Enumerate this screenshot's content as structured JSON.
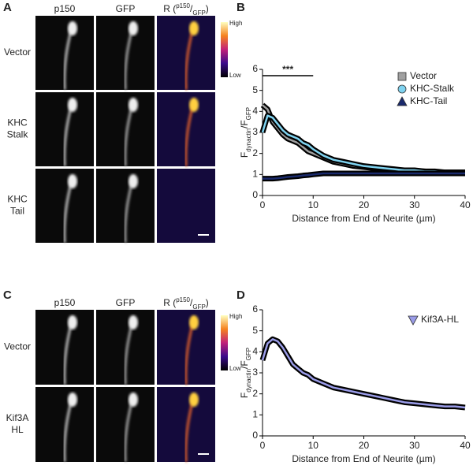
{
  "figure": {
    "panels": [
      "A",
      "B",
      "C",
      "D"
    ],
    "top": {
      "columns": [
        [
          {
            "text": "p150"
          }
        ],
        [
          {
            "text": "GFP"
          }
        ],
        [
          {
            "text": "R ("
          },
          {
            "text": "p150",
            "sup": true
          },
          {
            "text": "/"
          },
          {
            "text": "GFP",
            "sub": true
          },
          {
            "text": ")"
          }
        ]
      ],
      "rows": [
        [
          "Vector"
        ],
        [
          "KHC",
          "Stalk"
        ],
        [
          "KHC",
          "Tail"
        ]
      ],
      "colorbar": {
        "high": "High",
        "low": "Low"
      }
    },
    "bottom": {
      "columns": [
        [
          {
            "text": "p150"
          }
        ],
        [
          {
            "text": "GFP"
          }
        ],
        [
          {
            "text": "R ("
          },
          {
            "text": "p150",
            "sup": true
          },
          {
            "text": "/"
          },
          {
            "text": "GFP",
            "sub": true
          },
          {
            "text": ")"
          }
        ]
      ],
      "rows": [
        [
          "Vector"
        ],
        [
          "Kif3A",
          "HL"
        ]
      ],
      "colorbar": {
        "high": "High",
        "low": "Low"
      }
    }
  },
  "chart_data": [
    {
      "type": "line",
      "ylabel": [
        {
          "text": "F"
        },
        {
          "text": "dynactin",
          "sub": true
        },
        {
          "text": "/F"
        },
        {
          "text": "GFP",
          "sub": true
        }
      ],
      "xlabel": "Distance from End of Neurite (µm)",
      "x": [
        0,
        1,
        2,
        3,
        4,
        5,
        6,
        7,
        8,
        9,
        10,
        12,
        14,
        16,
        18,
        20,
        22,
        24,
        26,
        28,
        30,
        32,
        34,
        36,
        38,
        40
      ],
      "series": [
        {
          "name": "Vector",
          "color": "#a0a0a0",
          "marker": "square",
          "values": [
            4.3,
            4.1,
            3.5,
            3.2,
            2.9,
            2.7,
            2.6,
            2.5,
            2.3,
            2.1,
            2.0,
            1.8,
            1.6,
            1.5,
            1.4,
            1.35,
            1.3,
            1.25,
            1.2,
            1.2,
            1.15,
            1.15,
            1.1,
            1.1,
            1.1,
            1.1
          ]
        },
        {
          "name": "KHC-Stalk",
          "color": "#7fd3f0",
          "marker": "circle",
          "values": [
            3.0,
            3.8,
            3.7,
            3.4,
            3.1,
            2.9,
            2.8,
            2.7,
            2.5,
            2.4,
            2.2,
            1.9,
            1.7,
            1.6,
            1.5,
            1.4,
            1.35,
            1.3,
            1.25,
            1.2,
            1.2,
            1.15,
            1.15,
            1.1,
            1.1,
            1.1
          ]
        },
        {
          "name": "KHC-Tail",
          "color": "#1a2a6c",
          "marker": "triangle",
          "values": [
            0.8,
            0.8,
            0.8,
            0.82,
            0.85,
            0.88,
            0.9,
            0.92,
            0.95,
            0.97,
            1.0,
            1.05,
            1.05,
            1.05,
            1.05,
            1.05,
            1.05,
            1.05,
            1.05,
            1.05,
            1.05,
            1.05,
            1.05,
            1.05,
            1.05,
            1.05
          ]
        }
      ],
      "annotations": [
        {
          "text": "***",
          "x": [
            0,
            10
          ],
          "y": 5.7
        }
      ],
      "xlim": [
        0,
        40
      ],
      "xticks": [
        0,
        10,
        20,
        30,
        40
      ],
      "ylim": [
        0,
        6
      ],
      "yticks": [
        0,
        1,
        2,
        3,
        4,
        5,
        6
      ]
    },
    {
      "type": "line",
      "ylabel": [
        {
          "text": "F"
        },
        {
          "text": "dynactin",
          "sub": true
        },
        {
          "text": "/F"
        },
        {
          "text": "GFP",
          "sub": true
        }
      ],
      "xlabel": "Distance from End of Neurite (µm)",
      "x": [
        0,
        1,
        2,
        3,
        4,
        5,
        6,
        7,
        8,
        9,
        10,
        12,
        14,
        16,
        18,
        20,
        22,
        24,
        26,
        28,
        30,
        32,
        34,
        36,
        38,
        40
      ],
      "series": [
        {
          "name": "Kif3A-HL",
          "color": "#9a9ce8",
          "marker": "triangle-down",
          "values": [
            3.6,
            4.4,
            4.6,
            4.5,
            4.2,
            3.8,
            3.4,
            3.2,
            3.0,
            2.9,
            2.7,
            2.5,
            2.3,
            2.2,
            2.1,
            2.0,
            1.9,
            1.8,
            1.7,
            1.6,
            1.55,
            1.5,
            1.45,
            1.4,
            1.4,
            1.35
          ]
        }
      ],
      "xlim": [
        0,
        40
      ],
      "xticks": [
        0,
        10,
        20,
        30,
        40
      ],
      "ylim": [
        0,
        6
      ],
      "yticks": [
        0,
        1,
        2,
        3,
        4,
        5,
        6
      ]
    }
  ]
}
